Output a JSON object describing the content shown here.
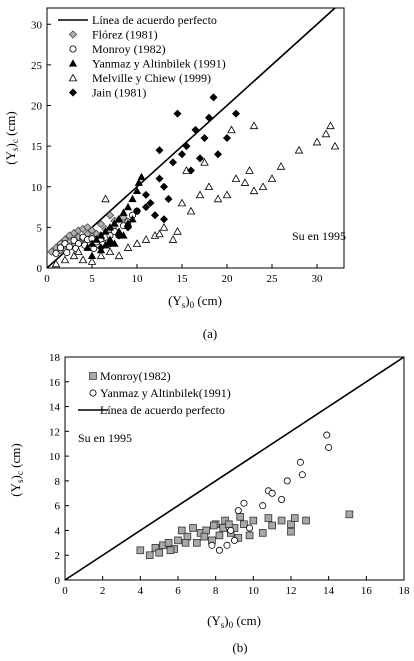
{
  "chart_data": [
    {
      "type": "scatter",
      "panel_label": "(a)",
      "xlabel": "(Ys)0 (cm)",
      "ylabel": "(Ys)c (cm)",
      "xlim": [
        0,
        33
      ],
      "ylim": [
        0,
        32
      ],
      "xticks": [
        0,
        5,
        10,
        15,
        20,
        25,
        30
      ],
      "yticks": [
        0,
        5,
        10,
        15,
        20,
        25,
        30
      ],
      "grid": false,
      "legend_position": "top-left",
      "annotation": "Su en 1995",
      "line": {
        "name": "Línea de acuerdo perfecto",
        "x": [
          0,
          33
        ],
        "y": [
          0,
          33
        ]
      },
      "series": [
        {
          "name": "Flórez (1981)",
          "marker": "diamond-gray",
          "points": [
            [
              0.5,
              2.0
            ],
            [
              1.0,
              2.5
            ],
            [
              1.5,
              3.0
            ],
            [
              2.0,
              3.5
            ],
            [
              2.5,
              4.0
            ],
            [
              3.0,
              4.3
            ],
            [
              3.5,
              4.6
            ],
            [
              4.0,
              4.8
            ],
            [
              4.5,
              5.0
            ],
            [
              5.0,
              4.6
            ],
            [
              5.5,
              4.2
            ],
            [
              6.0,
              4.0
            ],
            [
              6.5,
              3.8
            ],
            [
              7.0,
              4.5
            ],
            [
              7.5,
              5.2
            ],
            [
              8.0,
              6.0
            ],
            [
              8.5,
              6.2
            ],
            [
              1.5,
              2.2
            ],
            [
              2.5,
              3.2
            ],
            [
              3.5,
              3.8
            ],
            [
              4.5,
              4.2
            ],
            [
              5.5,
              3.5
            ],
            [
              6.5,
              4.8
            ],
            [
              7.5,
              5.8
            ],
            [
              3.0,
              2.8
            ],
            [
              4.0,
              3.6
            ],
            [
              2.0,
              2.8
            ],
            [
              6.0,
              5.4
            ],
            [
              7.0,
              6.5
            ],
            [
              5.0,
              3.9
            ]
          ]
        },
        {
          "name": "Monroy (1982)",
          "marker": "circle-open",
          "points": [
            [
              1.0,
              1.8
            ],
            [
              1.5,
              2.5
            ],
            [
              2.0,
              3.0
            ],
            [
              2.5,
              2.6
            ],
            [
              3.0,
              3.4
            ],
            [
              3.5,
              3.0
            ],
            [
              4.0,
              3.8
            ],
            [
              4.5,
              3.5
            ],
            [
              5.0,
              3.6
            ],
            [
              5.5,
              3.2
            ],
            [
              6.0,
              3.5
            ],
            [
              6.5,
              3.8
            ],
            [
              7.0,
              4.0
            ],
            [
              7.5,
              4.5
            ],
            [
              8.0,
              4.0
            ],
            [
              8.5,
              5.2
            ],
            [
              9.0,
              5.7
            ],
            [
              9.5,
              6.5
            ],
            [
              10.0,
              7.0
            ],
            [
              2.2,
              1.9
            ],
            [
              3.2,
              2.4
            ],
            [
              4.2,
              2.8
            ],
            [
              5.2,
              2.4
            ],
            [
              6.2,
              2.9
            ]
          ]
        },
        {
          "name": "Yanmaz y Altinbilek (1991)",
          "marker": "triangle-filled",
          "points": [
            [
              4.5,
              2.5
            ],
            [
              5.0,
              3.0
            ],
            [
              5.5,
              3.5
            ],
            [
              6.0,
              4.0
            ],
            [
              6.5,
              4.5
            ],
            [
              7.0,
              5.0
            ],
            [
              7.5,
              5.5
            ],
            [
              8.0,
              6.0
            ],
            [
              8.5,
              6.8
            ],
            [
              9.0,
              7.5
            ],
            [
              9.5,
              8.5
            ],
            [
              10.0,
              9.5
            ],
            [
              10.2,
              10.5
            ],
            [
              10.5,
              11.2
            ],
            [
              7.0,
              3.5
            ],
            [
              8.0,
              4.5
            ],
            [
              9.0,
              5.5
            ],
            [
              6.0,
              2.2
            ],
            [
              5.0,
              1.5
            ],
            [
              4.0,
              1.0
            ],
            [
              8.5,
              4.0
            ],
            [
              9.5,
              6.0
            ],
            [
              7.5,
              3.0
            ],
            [
              6.5,
              2.8
            ]
          ]
        },
        {
          "name": "Melville y Chiew (1999)",
          "marker": "triangle-open",
          "points": [
            [
              1.0,
              0.5
            ],
            [
              2.0,
              1.0
            ],
            [
              3.0,
              1.5
            ],
            [
              4.0,
              1.0
            ],
            [
              5.0,
              0.8
            ],
            [
              6.0,
              1.5
            ],
            [
              7.0,
              2.0
            ],
            [
              8.0,
              1.5
            ],
            [
              9.0,
              2.5
            ],
            [
              10.0,
              3.0
            ],
            [
              11.0,
              3.5
            ],
            [
              12.0,
              4.0
            ],
            [
              13.0,
              5.0
            ],
            [
              14.0,
              3.5
            ],
            [
              15.0,
              8.0
            ],
            [
              16.0,
              7.0
            ],
            [
              17.0,
              9.0
            ],
            [
              18.0,
              10.0
            ],
            [
              19.0,
              8.5
            ],
            [
              20.0,
              9.0
            ],
            [
              21.0,
              11.0
            ],
            [
              22.0,
              10.5
            ],
            [
              23.0,
              9.5
            ],
            [
              24.0,
              10.0
            ],
            [
              25.0,
              11.0
            ],
            [
              26.0,
              12.5
            ],
            [
              28.0,
              14.5
            ],
            [
              30.0,
              15.5
            ],
            [
              31.0,
              16.5
            ],
            [
              31.5,
              17.5
            ],
            [
              32.0,
              15.0
            ],
            [
              20.5,
              17.0
            ],
            [
              23.0,
              17.5
            ],
            [
              22.5,
              12.0
            ],
            [
              15.5,
              12.0
            ],
            [
              17.5,
              13.0
            ],
            [
              12.5,
              4.2
            ],
            [
              14.5,
              4.5
            ],
            [
              6.5,
              8.5
            ],
            [
              3.5,
              2.0
            ]
          ]
        },
        {
          "name": "Jain (1981)",
          "marker": "diamond-filled",
          "points": [
            [
              6.0,
              2.5
            ],
            [
              7.0,
              3.0
            ],
            [
              8.0,
              4.0
            ],
            [
              9.0,
              5.0
            ],
            [
              10.0,
              7.0
            ],
            [
              11.0,
              9.0
            ],
            [
              11.5,
              8.0
            ],
            [
              12.0,
              6.5
            ],
            [
              12.5,
              11.0
            ],
            [
              13.0,
              10.0
            ],
            [
              13.5,
              8.5
            ],
            [
              14.0,
              13.0
            ],
            [
              14.5,
              19.0
            ],
            [
              15.0,
              14.0
            ],
            [
              15.5,
              15.0
            ],
            [
              16.0,
              12.0
            ],
            [
              16.5,
              17.0
            ],
            [
              17.0,
              13.5
            ],
            [
              17.5,
              16.0
            ],
            [
              18.0,
              18.5
            ],
            [
              18.5,
              21.0
            ],
            [
              19.0,
              14.0
            ],
            [
              20.0,
              16.0
            ],
            [
              21.0,
              19.0
            ],
            [
              12.5,
              14.5
            ],
            [
              11.0,
              7.5
            ],
            [
              13.0,
              6.0
            ]
          ]
        }
      ]
    },
    {
      "type": "scatter",
      "panel_label": "(b)",
      "xlabel": "(Ys)0 (cm)",
      "ylabel": "(Ys)c (cm)",
      "xlim": [
        0,
        18
      ],
      "ylim": [
        0,
        18
      ],
      "xticks": [
        0,
        2,
        4,
        6,
        8,
        10,
        12,
        14,
        16,
        18
      ],
      "yticks": [
        0,
        2,
        4,
        6,
        8,
        10,
        12,
        14,
        16,
        18
      ],
      "grid": false,
      "legend_position": "top-left",
      "annotation": "Su en 1995",
      "line": {
        "name": "Línea de acuerdo perfecto",
        "x": [
          0,
          18
        ],
        "y": [
          0,
          18
        ]
      },
      "series": [
        {
          "name": "Monroy(1982)",
          "marker": "square-gray",
          "points": [
            [
              4.0,
              2.4
            ],
            [
              4.5,
              2.0
            ],
            [
              4.8,
              2.6
            ],
            [
              5.0,
              2.2
            ],
            [
              5.2,
              2.8
            ],
            [
              5.5,
              3.0
            ],
            [
              5.8,
              2.5
            ],
            [
              6.0,
              3.2
            ],
            [
              6.2,
              4.0
            ],
            [
              6.5,
              3.5
            ],
            [
              6.8,
              4.2
            ],
            [
              7.0,
              3.0
            ],
            [
              7.2,
              3.8
            ],
            [
              7.5,
              4.0
            ],
            [
              7.8,
              3.2
            ],
            [
              8.0,
              4.5
            ],
            [
              8.2,
              3.6
            ],
            [
              8.5,
              4.8
            ],
            [
              8.8,
              3.8
            ],
            [
              9.0,
              4.2
            ],
            [
              9.2,
              3.4
            ],
            [
              9.5,
              4.5
            ],
            [
              9.8,
              3.6
            ],
            [
              10.0,
              4.8
            ],
            [
              10.5,
              3.8
            ],
            [
              11.0,
              4.4
            ],
            [
              11.5,
              4.8
            ],
            [
              12.0,
              4.5
            ],
            [
              12.2,
              5.0
            ],
            [
              12.8,
              4.8
            ],
            [
              15.1,
              5.3
            ],
            [
              5.6,
              2.4
            ],
            [
              6.4,
              3.0
            ],
            [
              7.4,
              3.5
            ],
            [
              8.4,
              4.2
            ],
            [
              9.3,
              5.1
            ],
            [
              10.8,
              5.0
            ],
            [
              12.0,
              3.9
            ],
            [
              8.7,
              4.5
            ],
            [
              7.9,
              4.4
            ]
          ]
        },
        {
          "name": "Yanmaz y Altinbilek(1991)",
          "marker": "circle-open",
          "points": [
            [
              8.2,
              2.4
            ],
            [
              8.6,
              2.8
            ],
            [
              9.0,
              3.2
            ],
            [
              9.2,
              5.6
            ],
            [
              9.5,
              6.2
            ],
            [
              9.8,
              4.2
            ],
            [
              10.5,
              6.0
            ],
            [
              10.8,
              7.2
            ],
            [
              11.0,
              7.0
            ],
            [
              11.5,
              6.5
            ],
            [
              11.8,
              8.0
            ],
            [
              12.5,
              9.5
            ],
            [
              12.6,
              8.5
            ],
            [
              13.9,
              11.7
            ],
            [
              14.0,
              10.7
            ],
            [
              8.8,
              4.0
            ],
            [
              7.8,
              2.8
            ]
          ]
        }
      ]
    }
  ]
}
